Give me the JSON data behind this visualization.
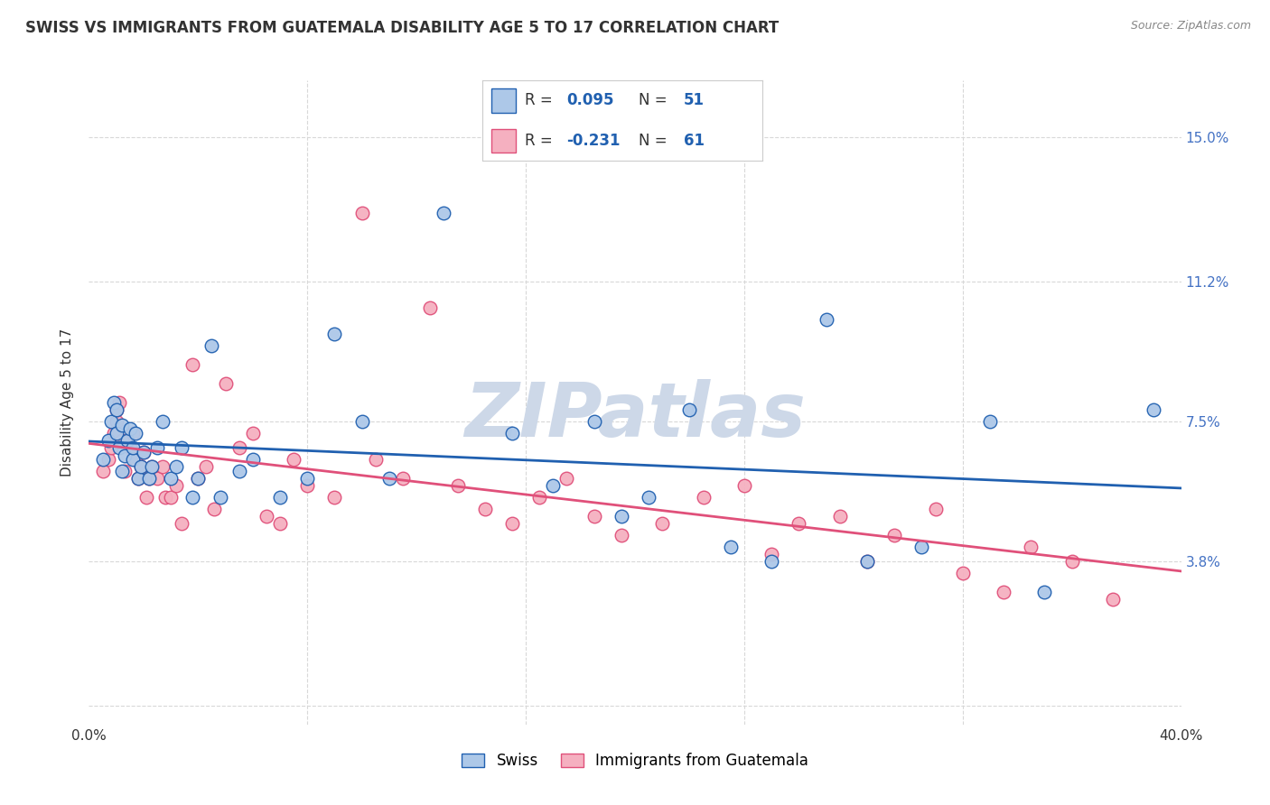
{
  "title": "SWISS VS IMMIGRANTS FROM GUATEMALA DISABILITY AGE 5 TO 17 CORRELATION CHART",
  "source": "Source: ZipAtlas.com",
  "ylabel": "Disability Age 5 to 17",
  "xlim": [
    0.0,
    0.4
  ],
  "ylim": [
    -0.005,
    0.165
  ],
  "xticks": [
    0.0,
    0.08,
    0.16,
    0.24,
    0.32,
    0.4
  ],
  "xticklabels": [
    "0.0%",
    "",
    "",
    "",
    "",
    "40.0%"
  ],
  "yticks": [
    0.0,
    0.038,
    0.075,
    0.112,
    0.15
  ],
  "yticklabels_right": [
    "",
    "3.8%",
    "7.5%",
    "11.2%",
    "15.0%"
  ],
  "legend_labels": [
    "Swiss",
    "Immigrants from Guatemala"
  ],
  "swiss_R": 0.095,
  "swiss_N": 51,
  "guatemala_R": -0.231,
  "guatemala_N": 61,
  "swiss_color": "#adc8e8",
  "guatemala_color": "#f5b0c0",
  "swiss_line_color": "#2060b0",
  "guatemala_line_color": "#e0507a",
  "swiss_x": [
    0.005,
    0.007,
    0.008,
    0.009,
    0.01,
    0.01,
    0.011,
    0.012,
    0.012,
    0.013,
    0.014,
    0.015,
    0.016,
    0.016,
    0.017,
    0.018,
    0.019,
    0.02,
    0.022,
    0.023,
    0.025,
    0.027,
    0.03,
    0.032,
    0.034,
    0.038,
    0.04,
    0.045,
    0.048,
    0.055,
    0.06,
    0.07,
    0.08,
    0.09,
    0.1,
    0.11,
    0.13,
    0.155,
    0.17,
    0.185,
    0.195,
    0.205,
    0.22,
    0.235,
    0.25,
    0.27,
    0.285,
    0.305,
    0.33,
    0.35,
    0.39
  ],
  "swiss_y": [
    0.065,
    0.07,
    0.075,
    0.08,
    0.072,
    0.078,
    0.068,
    0.074,
    0.062,
    0.066,
    0.07,
    0.073,
    0.065,
    0.068,
    0.072,
    0.06,
    0.063,
    0.067,
    0.06,
    0.063,
    0.068,
    0.075,
    0.06,
    0.063,
    0.068,
    0.055,
    0.06,
    0.095,
    0.055,
    0.062,
    0.065,
    0.055,
    0.06,
    0.098,
    0.075,
    0.06,
    0.13,
    0.072,
    0.058,
    0.075,
    0.05,
    0.055,
    0.078,
    0.042,
    0.038,
    0.102,
    0.038,
    0.042,
    0.075,
    0.03,
    0.078
  ],
  "guatemala_x": [
    0.005,
    0.007,
    0.008,
    0.009,
    0.01,
    0.01,
    0.011,
    0.012,
    0.013,
    0.015,
    0.016,
    0.017,
    0.018,
    0.019,
    0.02,
    0.021,
    0.022,
    0.023,
    0.025,
    0.027,
    0.028,
    0.03,
    0.032,
    0.034,
    0.038,
    0.04,
    0.043,
    0.046,
    0.05,
    0.055,
    0.06,
    0.065,
    0.07,
    0.075,
    0.08,
    0.09,
    0.1,
    0.105,
    0.115,
    0.125,
    0.135,
    0.145,
    0.155,
    0.165,
    0.175,
    0.185,
    0.195,
    0.21,
    0.225,
    0.24,
    0.25,
    0.26,
    0.275,
    0.285,
    0.295,
    0.31,
    0.32,
    0.335,
    0.345,
    0.36,
    0.375
  ],
  "guatemala_y": [
    0.062,
    0.065,
    0.068,
    0.072,
    0.075,
    0.078,
    0.08,
    0.07,
    0.062,
    0.068,
    0.072,
    0.065,
    0.06,
    0.063,
    0.067,
    0.055,
    0.06,
    0.063,
    0.06,
    0.063,
    0.055,
    0.055,
    0.058,
    0.048,
    0.09,
    0.06,
    0.063,
    0.052,
    0.085,
    0.068,
    0.072,
    0.05,
    0.048,
    0.065,
    0.058,
    0.055,
    0.13,
    0.065,
    0.06,
    0.105,
    0.058,
    0.052,
    0.048,
    0.055,
    0.06,
    0.05,
    0.045,
    0.048,
    0.055,
    0.058,
    0.04,
    0.048,
    0.05,
    0.038,
    0.045,
    0.052,
    0.035,
    0.03,
    0.042,
    0.038,
    0.028
  ],
  "background_color": "#ffffff",
  "grid_color": "#d8d8d8",
  "tick_color": "#4472c4",
  "text_color": "#333333",
  "title_fontsize": 12,
  "tick_fontsize": 11,
  "legend_fontsize": 12,
  "watermark_text": "ZIPatlas",
  "watermark_color": "#cdd8e8",
  "watermark_fontsize": 60
}
